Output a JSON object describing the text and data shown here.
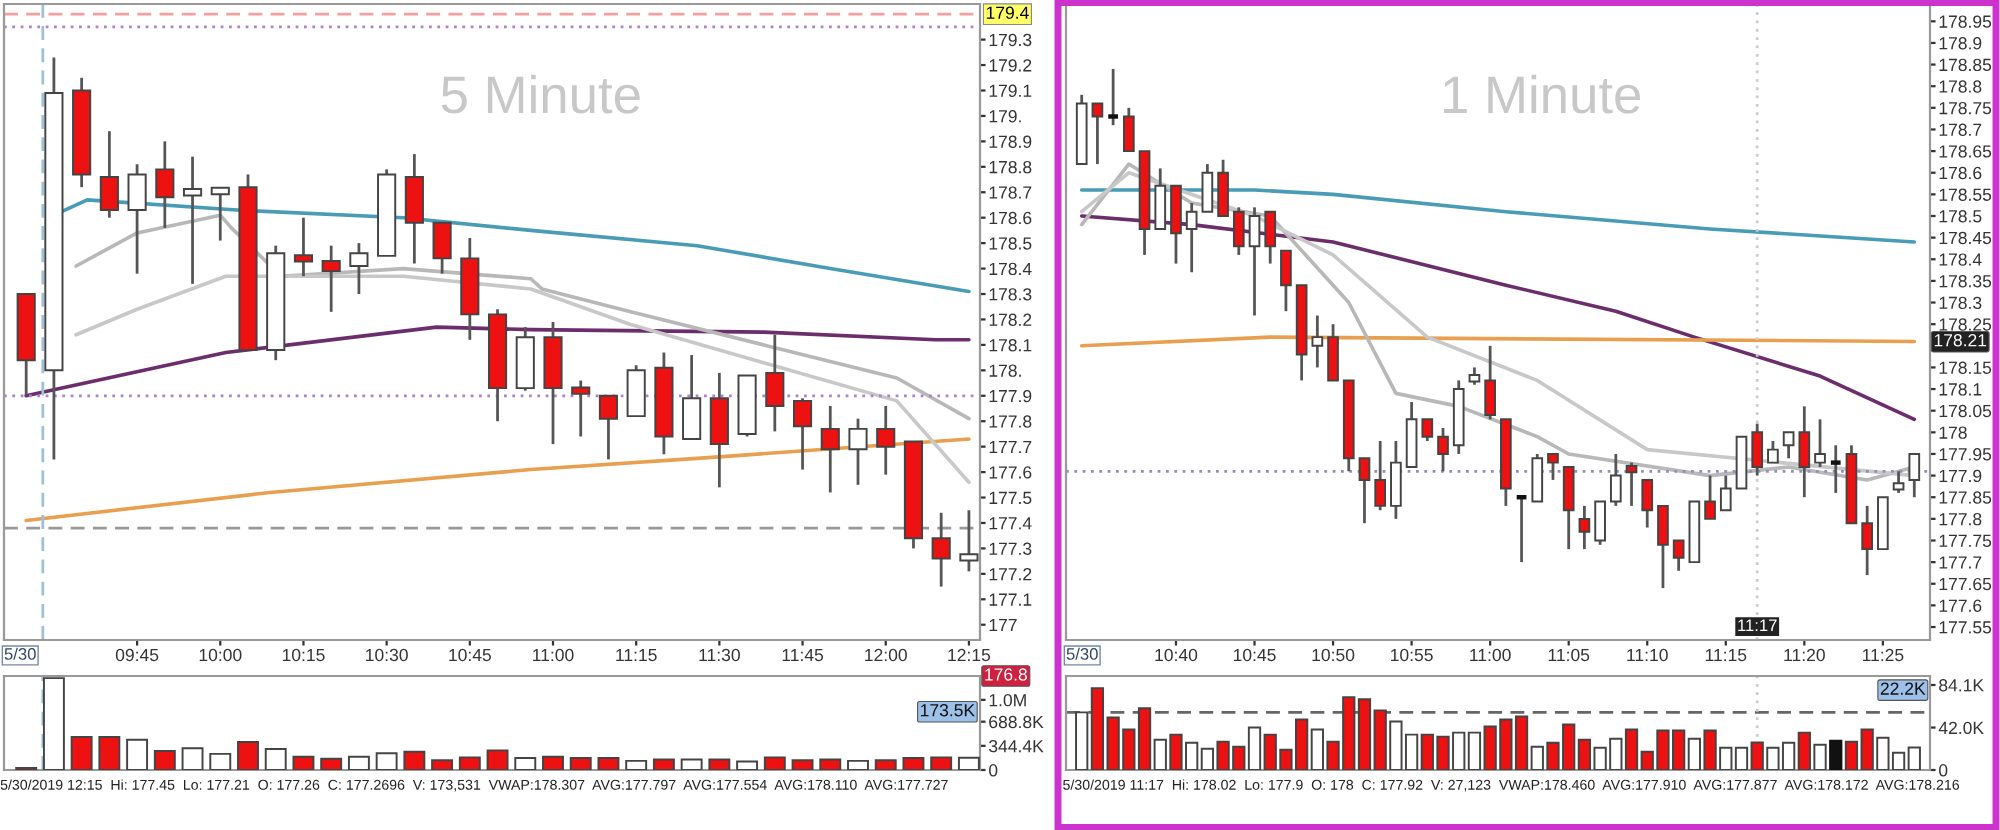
{
  "chart_data": [
    {
      "type": "candlestick",
      "annotations": [
        "5 Minute",
        "5/30"
      ],
      "x": [
        "2019-05-30T09:25",
        "2019-05-30T09:30",
        "2019-05-30T09:35",
        "2019-05-30T09:40",
        "2019-05-30T09:45",
        "2019-05-30T09:50",
        "2019-05-30T09:55",
        "2019-05-30T10:00",
        "2019-05-30T10:05",
        "2019-05-30T10:10",
        "2019-05-30T10:15",
        "2019-05-30T10:20",
        "2019-05-30T10:25",
        "2019-05-30T10:30",
        "2019-05-30T10:35",
        "2019-05-30T10:40",
        "2019-05-30T10:45",
        "2019-05-30T10:50",
        "2019-05-30T10:55",
        "2019-05-30T11:00",
        "2019-05-30T11:05",
        "2019-05-30T11:10",
        "2019-05-30T11:15",
        "2019-05-30T11:20",
        "2019-05-30T11:25",
        "2019-05-30T11:30",
        "2019-05-30T11:35",
        "2019-05-30T11:40",
        "2019-05-30T11:45",
        "2019-05-30T11:50",
        "2019-05-30T11:55",
        "2019-05-30T12:00",
        "2019-05-30T12:05",
        "2019-05-30T12:10",
        "2019-05-30T12:15"
      ],
      "ohlc": [
        [
          178.3,
          178.3,
          177.9,
          178.04
        ],
        [
          178.0,
          179.23,
          177.65,
          179.09
        ],
        [
          179.1,
          179.15,
          178.72,
          178.77
        ],
        [
          178.76,
          178.94,
          178.6,
          178.63
        ],
        [
          178.63,
          178.81,
          178.38,
          178.77
        ],
        [
          178.79,
          178.9,
          178.56,
          178.68
        ],
        [
          178.69,
          178.84,
          178.34,
          178.71
        ],
        [
          178.7,
          178.71,
          178.51,
          178.71
        ],
        [
          178.72,
          178.77,
          178.08,
          178.08
        ],
        [
          178.08,
          178.49,
          178.04,
          178.46
        ],
        [
          178.45,
          178.6,
          178.37,
          178.43
        ],
        [
          178.43,
          178.49,
          178.23,
          178.39
        ],
        [
          178.41,
          178.5,
          178.3,
          178.46
        ],
        [
          178.45,
          178.79,
          178.45,
          178.77
        ],
        [
          178.76,
          178.85,
          178.42,
          178.58
        ],
        [
          178.58,
          178.58,
          178.38,
          178.44
        ],
        [
          178.44,
          178.52,
          178.12,
          178.22
        ],
        [
          178.22,
          178.24,
          177.8,
          177.93
        ],
        [
          177.93,
          178.17,
          177.92,
          178.13
        ],
        [
          178.13,
          178.19,
          177.71,
          177.93
        ],
        [
          177.93,
          177.96,
          177.74,
          177.91
        ],
        [
          177.9,
          177.9,
          177.65,
          177.81
        ],
        [
          177.82,
          178.02,
          177.82,
          178.0
        ],
        [
          178.01,
          178.07,
          177.67,
          177.74
        ],
        [
          177.73,
          178.06,
          177.73,
          177.89
        ],
        [
          177.89,
          177.99,
          177.54,
          177.71
        ],
        [
          177.75,
          177.98,
          177.74,
          177.98
        ],
        [
          177.99,
          178.14,
          177.76,
          177.86
        ],
        [
          177.88,
          177.89,
          177.61,
          177.78
        ],
        [
          177.77,
          177.86,
          177.52,
          177.69
        ],
        [
          177.69,
          177.81,
          177.55,
          177.77
        ],
        [
          177.77,
          177.86,
          177.59,
          177.7
        ],
        [
          177.72,
          177.72,
          177.3,
          177.34
        ],
        [
          177.34,
          177.44,
          177.15,
          177.26
        ],
        [
          177.26,
          177.45,
          177.21,
          177.2696
        ]
      ],
      "colors": [
        "#ee1111",
        "#ffffff",
        "#ee1111",
        "#ee1111",
        "#ffffff",
        "#ee1111",
        "#ffffff",
        "#ffffff",
        "#ee1111",
        "#ffffff",
        "#ee1111",
        "#ee1111",
        "#ffffff",
        "#ffffff",
        "#ee1111",
        "#ee1111",
        "#ee1111",
        "#ee1111",
        "#ffffff",
        "#ee1111",
        "#ee1111",
        "#ee1111",
        "#ffffff",
        "#ee1111",
        "#ffffff",
        "#ee1111",
        "#ffffff",
        "#ee1111",
        "#ee1111",
        "#ee1111",
        "#ffffff",
        "#ee1111",
        "#ee1111",
        "#ee1111",
        "#ffffff"
      ],
      "series": [
        {
          "type": "line",
          "color": "#4a9bb5",
          "x": [
            "2019-05-30T09:31",
            "2019-05-30T09:36",
            "2019-05-30T10:03",
            "2019-05-30T10:33",
            "2019-05-30T10:56",
            "2019-05-30T11:26",
            "2019-05-30T11:50",
            "2019-05-30T12:15"
          ],
          "values": [
            178.62,
            178.67,
            178.63,
            178.6,
            178.55,
            178.49,
            178.4,
            178.31
          ]
        },
        {
          "type": "line",
          "color": "#6b2d6b",
          "x": [
            "2019-05-30T09:25",
            "2019-05-30T10:01",
            "2019-05-30T10:39",
            "2019-05-30T10:56",
            "2019-05-30T11:38",
            "2019-05-30T12:09",
            "2019-05-30T12:15"
          ],
          "values": [
            177.9,
            178.07,
            178.17,
            178.16,
            178.15,
            178.12,
            178.12
          ]
        },
        {
          "type": "line",
          "color": "#e8a050",
          "x": [
            "2019-05-30T09:25",
            "2019-05-30T10:09",
            "2019-05-30T10:56",
            "2019-05-30T11:30",
            "2019-05-30T12:15"
          ],
          "values": [
            177.41,
            177.52,
            177.61,
            177.66,
            177.73
          ]
        },
        {
          "type": "line",
          "color": "#b8b8b8",
          "x": [
            "2019-05-30T09:34",
            "2019-05-30T09:45",
            "2019-05-30T10:00",
            "2019-05-30T10:02",
            "2019-05-30T10:11",
            "2019-05-30T10:33",
            "2019-05-30T10:56",
            "2019-05-30T10:58",
            "2019-05-30T11:14",
            "2019-05-30T11:38",
            "2019-05-30T12:02",
            "2019-05-30T12:15"
          ],
          "values": [
            178.41,
            178.54,
            178.61,
            178.56,
            178.37,
            178.4,
            178.36,
            178.32,
            178.23,
            178.1,
            177.97,
            177.81
          ]
        },
        {
          "type": "line",
          "color": "#c8c8c8",
          "x": [
            "2019-05-30T09:34",
            "2019-05-30T09:45",
            "2019-05-30T10:01",
            "2019-05-30T10:33",
            "2019-05-30T10:56",
            "2019-05-30T11:14",
            "2019-05-30T11:38",
            "2019-05-30T12:02",
            "2019-05-30T12:15"
          ],
          "values": [
            178.14,
            178.24,
            178.37,
            178.37,
            178.32,
            178.18,
            178.03,
            177.88,
            177.56
          ]
        }
      ],
      "xlim": [
        "2019-05-30T09:21",
        "2019-05-30T12:17"
      ],
      "xticks": [
        {
          "value": "2019-05-30T09:45",
          "label": "09:45"
        },
        {
          "value": "2019-05-30T10:00",
          "label": "10:00"
        },
        {
          "value": "2019-05-30T10:15",
          "label": "10:15"
        },
        {
          "value": "2019-05-30T10:30",
          "label": "10:30"
        },
        {
          "value": "2019-05-30T10:45",
          "label": "10:45"
        },
        {
          "value": "2019-05-30T11:00",
          "label": "11:00"
        },
        {
          "value": "2019-05-30T11:15",
          "label": "11:15"
        },
        {
          "value": "2019-05-30T11:30",
          "label": "11:30"
        },
        {
          "value": "2019-05-30T11:45",
          "label": "11:45"
        },
        {
          "value": "2019-05-30T12:00",
          "label": "12:00"
        },
        {
          "value": "2019-05-30T12:15",
          "label": "12:15"
        }
      ],
      "ylim": [
        176.94,
        179.44
      ],
      "yticks": [
        177,
        177.1,
        177.2,
        177.3,
        177.4,
        177.5,
        177.6,
        177.7,
        177.8,
        177.9,
        {
          "value": 178,
          "label": "178."
        },
        178.1,
        178.2,
        178.3,
        178.4,
        178.5,
        178.6,
        178.7,
        178.8,
        178.9,
        {
          "value": 179,
          "label": "179."
        },
        179.1,
        179.2,
        179.3
      ],
      "ref_lines": [
        {
          "axis": "y",
          "value": 179.4,
          "label": "179.4",
          "color": "#f4a0a0",
          "line_style": "dashed"
        },
        {
          "axis": "y",
          "value": 179.35,
          "color": "#b080d0",
          "line_style": "dotted"
        },
        {
          "axis": "y",
          "value": 177.9,
          "color": "#b080d0",
          "line_style": "dotted"
        },
        {
          "axis": "y",
          "value": 177.38,
          "color": "#999999",
          "line_style": "dashed"
        },
        {
          "axis": "x",
          "value": "2019-05-30T09:28",
          "color": "#9fc0d8",
          "line_style": "dashed"
        }
      ],
      "grid": false,
      "legend": false
    },
    {
      "type": "bar",
      "annotations": [
        "5/30/2019 12:15  Hi: 177.45  Lo: 177.21  O: 177.26  C: 177.2696  V: 173,531  VWAP:178.307  AVG:177.797  AVG:177.554  AVG:178.110  AVG:177.727",
        "176.8",
        "173.5K"
      ],
      "x": [
        "2019-05-30T09:25",
        "2019-05-30T09:30",
        "2019-05-30T09:35",
        "2019-05-30T09:40",
        "2019-05-30T09:45",
        "2019-05-30T09:50",
        "2019-05-30T09:55",
        "2019-05-30T10:00",
        "2019-05-30T10:05",
        "2019-05-30T10:10",
        "2019-05-30T10:15",
        "2019-05-30T10:20",
        "2019-05-30T10:25",
        "2019-05-30T10:30",
        "2019-05-30T10:35",
        "2019-05-30T10:40",
        "2019-05-30T10:45",
        "2019-05-30T10:50",
        "2019-05-30T10:55",
        "2019-05-30T11:00",
        "2019-05-30T11:05",
        "2019-05-30T11:10",
        "2019-05-30T11:15",
        "2019-05-30T11:20",
        "2019-05-30T11:25",
        "2019-05-30T11:30",
        "2019-05-30T11:35",
        "2019-05-30T11:40",
        "2019-05-30T11:45",
        "2019-05-30T11:50",
        "2019-05-30T11:55",
        "2019-05-30T12:00",
        "2019-05-30T12:05",
        "2019-05-30T12:10",
        "2019-05-30T12:15"
      ],
      "values": [
        30000,
        1310000,
        470000,
        470000,
        430000,
        270000,
        310000,
        230000,
        400000,
        300000,
        190000,
        160000,
        190000,
        240000,
        260000,
        140000,
        180000,
        280000,
        170000,
        190000,
        170000,
        170000,
        130000,
        150000,
        150000,
        150000,
        120000,
        180000,
        140000,
        150000,
        130000,
        140000,
        170000,
        180000,
        173531
      ],
      "colors": [
        "#ee1111",
        "#ffffff",
        "#ee1111",
        "#ee1111",
        "#ffffff",
        "#ee1111",
        "#ffffff",
        "#ffffff",
        "#ee1111",
        "#ffffff",
        "#ee1111",
        "#ee1111",
        "#ffffff",
        "#ffffff",
        "#ee1111",
        "#ee1111",
        "#ee1111",
        "#ee1111",
        "#ffffff",
        "#ee1111",
        "#ee1111",
        "#ee1111",
        "#ffffff",
        "#ee1111",
        "#ffffff",
        "#ee1111",
        "#ffffff",
        "#ee1111",
        "#ee1111",
        "#ee1111",
        "#ffffff",
        "#ee1111",
        "#ee1111",
        "#ee1111",
        "#ffffff"
      ],
      "xlim": [
        "2019-05-30T09:21",
        "2019-05-30T12:17"
      ],
      "ylim": [
        0,
        1340000
      ],
      "yticks": [
        0,
        {
          "value": 344400,
          "label": "344.4K"
        },
        {
          "value": 688800,
          "label": "688.8K"
        },
        {
          "value": 1000000,
          "label": "1.0M"
        }
      ],
      "ref_lines": [
        {
          "axis": "x",
          "value": "2019-05-30T09:28",
          "color": "#9fc0d8",
          "line_style": "dashed"
        }
      ],
      "tick_labels": "y",
      "grid": false,
      "legend": false
    },
    {
      "type": "candlestick",
      "annotations": [
        "1 Minute",
        "5/30",
        "178.21"
      ],
      "x": [
        "2019-05-30T10:34",
        "2019-05-30T10:35",
        "2019-05-30T10:36",
        "2019-05-30T10:37",
        "2019-05-30T10:38",
        "2019-05-30T10:39",
        "2019-05-30T10:40",
        "2019-05-30T10:41",
        "2019-05-30T10:42",
        "2019-05-30T10:43",
        "2019-05-30T10:44",
        "2019-05-30T10:45",
        "2019-05-30T10:46",
        "2019-05-30T10:47",
        "2019-05-30T10:48",
        "2019-05-30T10:49",
        "2019-05-30T10:50",
        "2019-05-30T10:51",
        "2019-05-30T10:52",
        "2019-05-30T10:53",
        "2019-05-30T10:54",
        "2019-05-30T10:55",
        "2019-05-30T10:56",
        "2019-05-30T10:57",
        "2019-05-30T10:58",
        "2019-05-30T10:59",
        "2019-05-30T11:00",
        "2019-05-30T11:01",
        "2019-05-30T11:02",
        "2019-05-30T11:03",
        "2019-05-30T11:04",
        "2019-05-30T11:05",
        "2019-05-30T11:06",
        "2019-05-30T11:07",
        "2019-05-30T11:08",
        "2019-05-30T11:09",
        "2019-05-30T11:10",
        "2019-05-30T11:11",
        "2019-05-30T11:12",
        "2019-05-30T11:13",
        "2019-05-30T11:14",
        "2019-05-30T11:15",
        "2019-05-30T11:16",
        "2019-05-30T11:17",
        "2019-05-30T11:18",
        "2019-05-30T11:19",
        "2019-05-30T11:20",
        "2019-05-30T11:21",
        "2019-05-30T11:22",
        "2019-05-30T11:23",
        "2019-05-30T11:24",
        "2019-05-30T11:25",
        "2019-05-30T11:26",
        "2019-05-30T11:27"
      ],
      "ohlc": [
        [
          178.62,
          178.78,
          178.62,
          178.76
        ],
        [
          178.76,
          178.76,
          178.62,
          178.73
        ],
        [
          178.73,
          178.84,
          178.71,
          178.73
        ],
        [
          178.73,
          178.75,
          178.65,
          178.65
        ],
        [
          178.65,
          178.65,
          178.41,
          178.47
        ],
        [
          178.47,
          178.61,
          178.47,
          178.57
        ],
        [
          178.57,
          178.57,
          178.39,
          178.46
        ],
        [
          178.47,
          178.53,
          178.37,
          178.51
        ],
        [
          178.51,
          178.62,
          178.51,
          178.6
        ],
        [
          178.6,
          178.63,
          178.5,
          178.5
        ],
        [
          178.51,
          178.52,
          178.41,
          178.43
        ],
        [
          178.43,
          178.52,
          178.27,
          178.5
        ],
        [
          178.51,
          178.51,
          178.39,
          178.43
        ],
        [
          178.42,
          178.42,
          178.28,
          178.34
        ],
        [
          178.34,
          178.34,
          178.12,
          178.18
        ],
        [
          178.2,
          178.27,
          178.15,
          178.22
        ],
        [
          178.22,
          178.25,
          178.12,
          178.12
        ],
        [
          178.12,
          178.12,
          177.91,
          177.94
        ],
        [
          177.94,
          177.94,
          177.79,
          177.89
        ],
        [
          177.89,
          177.98,
          177.82,
          177.83
        ],
        [
          177.83,
          177.98,
          177.8,
          177.93
        ],
        [
          177.92,
          178.07,
          177.92,
          178.03
        ],
        [
          178.03,
          178.03,
          177.98,
          177.99
        ],
        [
          177.99,
          178.01,
          177.91,
          177.95
        ],
        [
          177.97,
          178.12,
          177.95,
          178.1
        ],
        [
          178.12,
          178.15,
          178.11,
          178.13
        ],
        [
          178.12,
          178.2,
          178.03,
          178.04
        ],
        [
          178.03,
          178.03,
          177.83,
          177.87
        ],
        [
          177.85,
          177.85,
          177.7,
          177.85
        ],
        [
          177.84,
          177.95,
          177.84,
          177.94
        ],
        [
          177.95,
          177.95,
          177.89,
          177.93
        ],
        [
          177.92,
          177.92,
          177.73,
          177.82
        ],
        [
          177.8,
          177.83,
          177.73,
          177.77
        ],
        [
          177.75,
          177.84,
          177.74,
          177.84
        ],
        [
          177.84,
          177.95,
          177.83,
          177.9
        ],
        [
          177.92,
          177.93,
          177.83,
          177.91
        ],
        [
          177.89,
          177.89,
          177.78,
          177.82
        ],
        [
          177.83,
          177.83,
          177.64,
          177.74
        ],
        [
          177.75,
          177.75,
          177.68,
          177.71
        ],
        [
          177.7,
          177.84,
          177.7,
          177.84
        ],
        [
          177.84,
          177.9,
          177.8,
          177.8
        ],
        [
          177.82,
          177.9,
          177.82,
          177.87
        ],
        [
          177.87,
          177.99,
          177.87,
          177.99
        ],
        [
          178,
          178.02,
          177.9,
          177.92
        ],
        [
          177.93,
          177.98,
          177.93,
          177.96
        ],
        [
          177.97,
          178.0,
          177.94,
          178.0
        ],
        [
          178.0,
          178.06,
          177.85,
          177.92
        ],
        [
          177.93,
          178.03,
          177.92,
          177.95
        ],
        [
          177.93,
          177.97,
          177.86,
          177.93
        ],
        [
          177.95,
          177.97,
          177.79,
          177.79
        ],
        [
          177.79,
          177.83,
          177.67,
          177.73
        ],
        [
          177.73,
          177.85,
          177.73,
          177.85
        ],
        [
          177.87,
          177.91,
          177.86,
          177.88
        ],
        [
          177.89,
          177.95,
          177.85,
          177.95
        ]
      ],
      "colors": [
        "#ffffff",
        "#ee1111",
        "#111111",
        "#ee1111",
        "#ee1111",
        "#ffffff",
        "#ee1111",
        "#ffffff",
        "#ffffff",
        "#ee1111",
        "#ee1111",
        "#ffffff",
        "#ee1111",
        "#ee1111",
        "#ee1111",
        "#ffffff",
        "#ee1111",
        "#ee1111",
        "#ee1111",
        "#ee1111",
        "#ffffff",
        "#ffffff",
        "#ee1111",
        "#ee1111",
        "#ffffff",
        "#ffffff",
        "#ee1111",
        "#ee1111",
        "#111111",
        "#ffffff",
        "#ee1111",
        "#ee1111",
        "#ee1111",
        "#ffffff",
        "#ffffff",
        "#ee1111",
        "#ee1111",
        "#ee1111",
        "#ee1111",
        "#ffffff",
        "#ee1111",
        "#ffffff",
        "#ffffff",
        "#ee1111",
        "#ffffff",
        "#ffffff",
        "#ee1111",
        "#ffffff",
        "#111111",
        "#ee1111",
        "#ee1111",
        "#ffffff",
        "#ffffff",
        "#ffffff"
      ],
      "series": [
        {
          "type": "line",
          "color": "#4a9bb5",
          "x": [
            "2019-05-30T10:34",
            "2019-05-30T10:45",
            "2019-05-30T10:50",
            "2019-05-30T11:01",
            "2019-05-30T11:14",
            "2019-05-30T11:27"
          ],
          "values": [
            178.56,
            178.56,
            178.55,
            178.51,
            178.47,
            178.44
          ]
        },
        {
          "type": "line",
          "color": "#6b2d6b",
          "x": [
            "2019-05-30T10:34",
            "2019-05-30T10:41",
            "2019-05-30T10:50",
            "2019-05-30T11:01",
            "2019-05-30T11:08",
            "2019-05-30T11:13",
            "2019-05-30T11:21",
            "2019-05-30T11:27"
          ],
          "values": [
            178.5,
            178.48,
            178.44,
            178.34,
            178.28,
            178.22,
            178.13,
            178.03
          ]
        },
        {
          "type": "line",
          "color": "#e8a050",
          "x": [
            "2019-05-30T10:34",
            "2019-05-30T10:46",
            "2019-05-30T11:27"
          ],
          "values": [
            178.2,
            178.22,
            178.21
          ]
        },
        {
          "type": "line",
          "color": "#b8b8b8",
          "x": [
            "2019-05-30T10:34",
            "2019-05-30T10:37",
            "2019-05-30T10:41",
            "2019-05-30T10:46",
            "2019-05-30T10:51",
            "2019-05-30T10:54",
            "2019-05-30T10:58",
            "2019-05-30T11:03",
            "2019-05-30T11:05",
            "2019-05-30T11:14",
            "2019-05-30T11:19",
            "2019-05-30T11:24",
            "2019-05-30T11:27"
          ],
          "values": [
            178.48,
            178.62,
            178.53,
            178.5,
            178.3,
            178.09,
            178.06,
            177.99,
            177.95,
            177.9,
            177.92,
            177.89,
            177.92
          ]
        },
        {
          "type": "line",
          "color": "#c8c8c8",
          "x": [
            "2019-05-30T10:34",
            "2019-05-30T10:37",
            "2019-05-30T10:45",
            "2019-05-30T10:50",
            "2019-05-30T10:56",
            "2019-05-30T11:03",
            "2019-05-30T11:10",
            "2019-05-30T11:27"
          ],
          "values": [
            178.51,
            178.6,
            178.5,
            178.41,
            178.22,
            178.12,
            177.96,
            177.9
          ]
        }
      ],
      "xlim": [
        "2019-05-30T10:33",
        "2019-05-30T11:28"
      ],
      "xticks": [
        {
          "value": "2019-05-30T10:40",
          "label": "10:40"
        },
        {
          "value": "2019-05-30T10:45",
          "label": "10:45"
        },
        {
          "value": "2019-05-30T10:50",
          "label": "10:50"
        },
        {
          "value": "2019-05-30T10:55",
          "label": "10:55"
        },
        {
          "value": "2019-05-30T11:00",
          "label": "11:00"
        },
        {
          "value": "2019-05-30T11:05",
          "label": "11:05"
        },
        {
          "value": "2019-05-30T11:10",
          "label": "11:10"
        },
        {
          "value": "2019-05-30T11:15",
          "label": "11:15"
        },
        {
          "value": "2019-05-30T11:20",
          "label": "11:20"
        },
        {
          "value": "2019-05-30T11:25",
          "label": "11:25"
        }
      ],
      "ylim": [
        177.52,
        178.99
      ],
      "yticks": [
        177.55,
        177.6,
        177.65,
        177.7,
        177.75,
        177.8,
        177.85,
        177.9,
        177.95,
        178,
        178.05,
        178.1,
        178.15,
        178.25,
        178.3,
        178.35,
        178.4,
        178.45,
        178.5,
        178.55,
        178.6,
        178.65,
        178.7,
        178.75,
        178.8,
        178.85,
        178.9,
        178.95
      ],
      "ref_lines": [
        {
          "axis": "y",
          "value": 177.91,
          "color": "#9090c0",
          "line_style": "dotted"
        },
        {
          "axis": "x",
          "value": "2019-05-30T11:17",
          "label": "11:17",
          "color": "#cccccc",
          "line_style": "dotted"
        }
      ],
      "grid": false,
      "legend": false
    },
    {
      "type": "bar",
      "annotations": [
        "5/30/2019 11:17  Hi: 178.02  Lo: 177.9  O: 178  C: 177.92  V: 27,123  VWAP:178.460  AVG:177.910  AVG:177.877  AVG:178.172  AVG:178.216",
        "22.2K"
      ],
      "x": [
        "2019-05-30T10:34",
        "2019-05-30T10:35",
        "2019-05-30T10:36",
        "2019-05-30T10:37",
        "2019-05-30T10:38",
        "2019-05-30T10:39",
        "2019-05-30T10:40",
        "2019-05-30T10:41",
        "2019-05-30T10:42",
        "2019-05-30T10:43",
        "2019-05-30T10:44",
        "2019-05-30T10:45",
        "2019-05-30T10:46",
        "2019-05-30T10:47",
        "2019-05-30T10:48",
        "2019-05-30T10:49",
        "2019-05-30T10:50",
        "2019-05-30T10:51",
        "2019-05-30T10:52",
        "2019-05-30T10:53",
        "2019-05-30T10:54",
        "2019-05-30T10:55",
        "2019-05-30T10:56",
        "2019-05-30T10:57",
        "2019-05-30T10:58",
        "2019-05-30T10:59",
        "2019-05-30T11:00",
        "2019-05-30T11:01",
        "2019-05-30T11:02",
        "2019-05-30T11:03",
        "2019-05-30T11:04",
        "2019-05-30T11:05",
        "2019-05-30T11:06",
        "2019-05-30T11:07",
        "2019-05-30T11:08",
        "2019-05-30T11:09",
        "2019-05-30T11:10",
        "2019-05-30T11:11",
        "2019-05-30T11:12",
        "2019-05-30T11:13",
        "2019-05-30T11:14",
        "2019-05-30T11:15",
        "2019-05-30T11:16",
        "2019-05-30T11:17",
        "2019-05-30T11:18",
        "2019-05-30T11:19",
        "2019-05-30T11:20",
        "2019-05-30T11:21",
        "2019-05-30T11:22",
        "2019-05-30T11:23",
        "2019-05-30T11:24",
        "2019-05-30T11:25",
        "2019-05-30T11:26",
        "2019-05-30T11:27"
      ],
      "values": [
        57000,
        81000,
        52000,
        40000,
        61000,
        30000,
        35000,
        27000,
        21000,
        28000,
        23000,
        42000,
        35000,
        20000,
        50000,
        40000,
        28000,
        72000,
        70000,
        59000,
        48000,
        35000,
        35000,
        33000,
        37000,
        37000,
        43000,
        50000,
        53000,
        23000,
        27000,
        45000,
        30000,
        22000,
        31000,
        40000,
        18000,
        39000,
        39000,
        31000,
        39000,
        22000,
        22000,
        27123,
        22000,
        27000,
        37000,
        25000,
        29000,
        28000,
        40000,
        32000,
        17000,
        22200
      ],
      "colors": [
        "#ffffff",
        "#ee1111",
        "#ee1111",
        "#ee1111",
        "#ee1111",
        "#ffffff",
        "#ee1111",
        "#ffffff",
        "#ffffff",
        "#ee1111",
        "#ee1111",
        "#ffffff",
        "#ee1111",
        "#ee1111",
        "#ee1111",
        "#ffffff",
        "#ee1111",
        "#ee1111",
        "#ee1111",
        "#ee1111",
        "#ffffff",
        "#ffffff",
        "#ee1111",
        "#ee1111",
        "#ffffff",
        "#ffffff",
        "#ee1111",
        "#ee1111",
        "#ee1111",
        "#ffffff",
        "#ee1111",
        "#ee1111",
        "#ee1111",
        "#ffffff",
        "#ffffff",
        "#ee1111",
        "#ee1111",
        "#ee1111",
        "#ee1111",
        "#ffffff",
        "#ee1111",
        "#ffffff",
        "#ffffff",
        "#ee1111",
        "#ffffff",
        "#ffffff",
        "#ee1111",
        "#ffffff",
        "#111111",
        "#ee1111",
        "#ee1111",
        "#ffffff",
        "#ffffff",
        "#ffffff"
      ],
      "xlim": [
        "2019-05-30T10:33",
        "2019-05-30T11:28"
      ],
      "ylim": [
        0,
        93000
      ],
      "yticks": [
        0,
        {
          "value": 42000,
          "label": "42.0K"
        },
        {
          "value": 84100,
          "label": "84.1K"
        }
      ],
      "ref_lines": [
        {
          "axis": "y",
          "value": 57000,
          "color": "#666666",
          "line_style": "dashed"
        },
        {
          "axis": "x",
          "value": "2019-05-30T11:17",
          "color": "#cccccc",
          "line_style": "dotted"
        }
      ],
      "tick_labels": "y",
      "grid": false,
      "legend": false
    }
  ]
}
